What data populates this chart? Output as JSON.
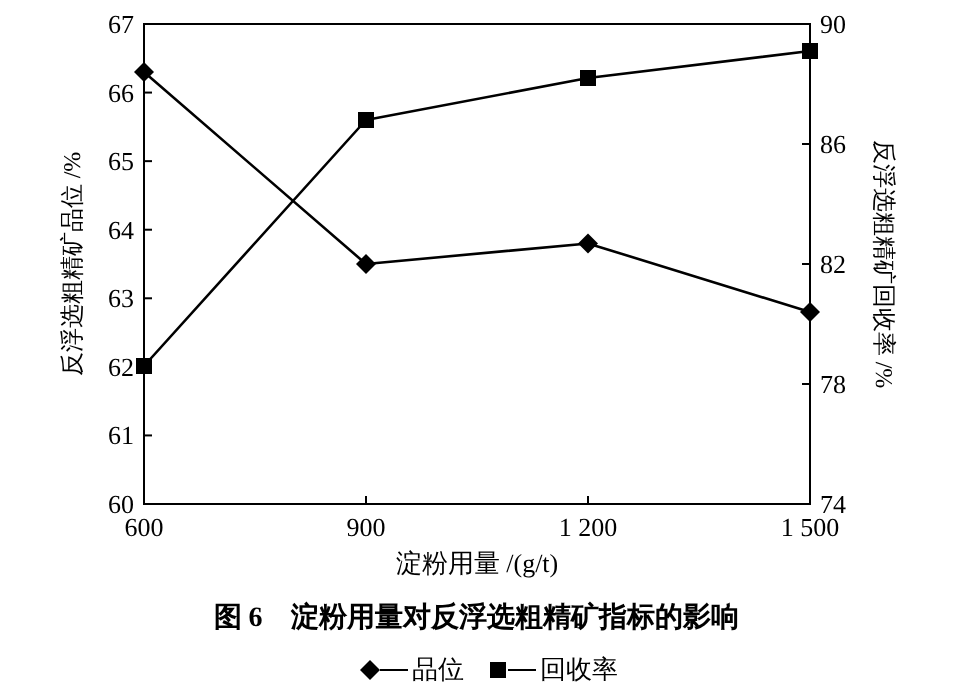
{
  "chart_data": {
    "type": "line",
    "title": "图 6　淀粉用量对反浮选粗精矿指标的影响",
    "xlabel": "淀粉用量 /(g/t)",
    "ylabel": "反浮选粗精矿品位 /%",
    "y2label": "反浮选粗精矿回收率 /%",
    "x": [
      600,
      900,
      1200,
      1500
    ],
    "xlim": [
      600,
      1500
    ],
    "xticks": [
      600,
      900,
      {
        "value": 1200,
        "label": "1 200"
      },
      {
        "value": 1500,
        "label": "1 500"
      }
    ],
    "ylim": [
      60,
      67
    ],
    "yticks": [
      60,
      61,
      62,
      63,
      64,
      65,
      66,
      67
    ],
    "y2lim": [
      74,
      90
    ],
    "y2ticks": [
      74,
      78,
      82,
      86,
      90
    ],
    "legend": "bottom",
    "line_style": "solid",
    "series": [
      {
        "name": "品位",
        "color": "#000000",
        "marker": "diamond",
        "values": [
          66.3,
          63.5,
          63.8,
          62.8
        ]
      },
      {
        "name": "回收率",
        "color": "#000000",
        "marker": "square",
        "axis": "y2",
        "values": [
          78.6,
          86.8,
          88.2,
          89.1
        ]
      }
    ]
  }
}
